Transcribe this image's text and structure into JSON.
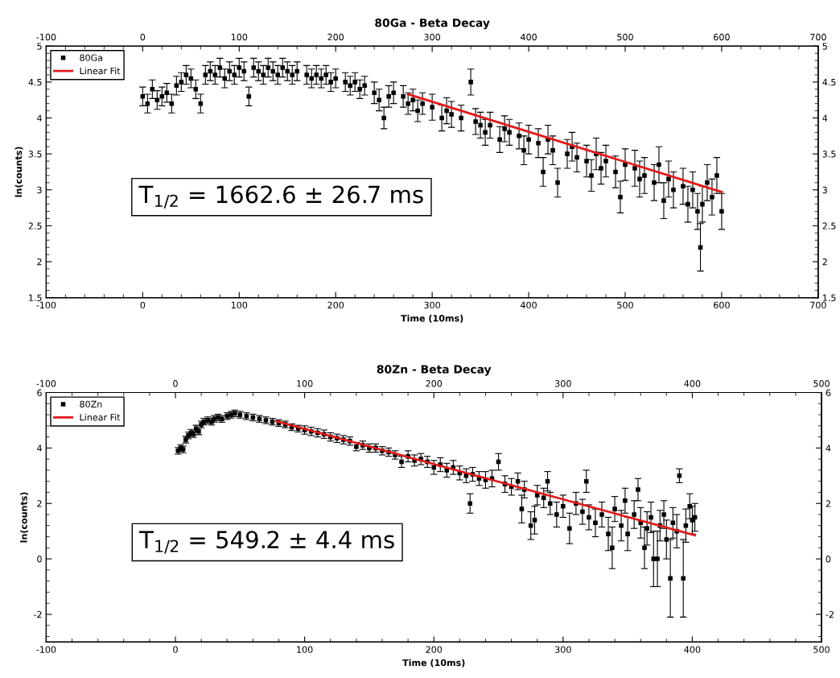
{
  "chart_data": [
    {
      "type": "scatter",
      "title": "80Ga - Beta Decay",
      "xlabel": "Time (10ms)",
      "ylabel": "ln(counts)",
      "xlim": [
        -100,
        700
      ],
      "xticks": [
        -100,
        0,
        100,
        200,
        300,
        400,
        500,
        600,
        700
      ],
      "x2lim": [
        -100,
        700
      ],
      "x2ticks": [
        -100,
        0,
        100,
        200,
        300,
        400,
        500,
        600,
        700
      ],
      "ylim": [
        1.5,
        5
      ],
      "yticks": [
        1.5,
        2,
        2.5,
        3,
        3.5,
        4,
        4.5,
        5
      ],
      "y2lim": [
        1.5,
        5
      ],
      "y2ticks": [
        1.5,
        2,
        2.5,
        3,
        3.5,
        4,
        4.5,
        5
      ],
      "legend": "top left",
      "grid": false,
      "annotations": [
        "T$_{1/2}$ = 1662.6 ± 26.7 ms"
      ],
      "series": [
        {
          "name": "80Ga",
          "color": "#000000",
          "marker": "square",
          "x": [
            0,
            5,
            10,
            15,
            20,
            25,
            30,
            35,
            40,
            45,
            50,
            55,
            60,
            65,
            70,
            75,
            80,
            85,
            90,
            95,
            100,
            105,
            110,
            115,
            120,
            125,
            130,
            135,
            140,
            145,
            150,
            155,
            160,
            170,
            175,
            180,
            185,
            190,
            195,
            200,
            210,
            215,
            220,
            225,
            230,
            240,
            245,
            250,
            255,
            260,
            270,
            275,
            280,
            285,
            290,
            300,
            310,
            315,
            320,
            330,
            340,
            345,
            350,
            355,
            360,
            370,
            375,
            380,
            390,
            395,
            400,
            410,
            415,
            420,
            425,
            430,
            440,
            445,
            450,
            460,
            465,
            470,
            475,
            480,
            490,
            495,
            500,
            510,
            515,
            520,
            530,
            535,
            540,
            545,
            550,
            560,
            565,
            570,
            575,
            578,
            580,
            585,
            590,
            595,
            600
          ],
          "values": [
            4.3,
            4.2,
            4.4,
            4.25,
            4.3,
            4.35,
            4.2,
            4.45,
            4.5,
            4.6,
            4.55,
            4.4,
            4.2,
            4.6,
            4.65,
            4.6,
            4.7,
            4.55,
            4.65,
            4.6,
            4.7,
            4.65,
            4.3,
            4.7,
            4.65,
            4.6,
            4.7,
            4.65,
            4.6,
            4.7,
            4.65,
            4.6,
            4.65,
            4.6,
            4.55,
            4.6,
            4.55,
            4.6,
            4.5,
            4.55,
            4.5,
            4.45,
            4.5,
            4.4,
            4.45,
            4.35,
            4.25,
            4.0,
            4.3,
            4.35,
            4.3,
            4.2,
            4.25,
            4.1,
            4.2,
            4.15,
            4.0,
            4.1,
            4.05,
            4.0,
            4.5,
            3.95,
            3.9,
            3.8,
            3.9,
            3.7,
            3.85,
            3.8,
            3.75,
            3.55,
            3.7,
            3.65,
            3.25,
            3.7,
            3.55,
            3.1,
            3.5,
            3.6,
            3.45,
            3.4,
            3.2,
            3.5,
            3.3,
            3.4,
            3.25,
            2.9,
            3.35,
            3.3,
            3.15,
            3.2,
            3.1,
            3.35,
            2.85,
            3.15,
            3.0,
            3.05,
            2.8,
            3.0,
            2.7,
            2.2,
            2.8,
            3.1,
            2.9,
            3.2,
            2.7
          ],
          "errors": [
            0.13,
            0.13,
            0.13,
            0.13,
            0.13,
            0.13,
            0.13,
            0.13,
            0.13,
            0.13,
            0.13,
            0.13,
            0.13,
            0.13,
            0.13,
            0.13,
            0.13,
            0.13,
            0.13,
            0.13,
            0.13,
            0.13,
            0.13,
            0.13,
            0.13,
            0.13,
            0.13,
            0.13,
            0.13,
            0.13,
            0.13,
            0.13,
            0.13,
            0.13,
            0.13,
            0.13,
            0.13,
            0.13,
            0.13,
            0.13,
            0.13,
            0.13,
            0.13,
            0.13,
            0.13,
            0.15,
            0.15,
            0.15,
            0.15,
            0.15,
            0.15,
            0.15,
            0.15,
            0.15,
            0.15,
            0.18,
            0.18,
            0.18,
            0.18,
            0.18,
            0.18,
            0.18,
            0.18,
            0.18,
            0.18,
            0.18,
            0.18,
            0.18,
            0.18,
            0.2,
            0.2,
            0.2,
            0.2,
            0.2,
            0.2,
            0.2,
            0.2,
            0.2,
            0.2,
            0.22,
            0.22,
            0.22,
            0.22,
            0.22,
            0.22,
            0.22,
            0.22,
            0.25,
            0.25,
            0.25,
            0.25,
            0.25,
            0.25,
            0.25,
            0.25,
            0.25,
            0.25,
            0.25,
            0.25,
            0.33,
            0.25,
            0.25,
            0.25,
            0.25,
            0.25
          ]
        },
        {
          "name": "Linear Fit",
          "type": "line",
          "marker": "none",
          "color": "#e31a1c",
          "x": [
            275,
            600
          ],
          "values": [
            4.33,
            2.97
          ]
        }
      ]
    },
    {
      "type": "scatter",
      "title": "80Zn - Beta Decay",
      "xlabel": "Time (10ms)",
      "ylabel": "ln(counts)",
      "xlim": [
        -100,
        500
      ],
      "xticks": [
        -100,
        0,
        100,
        200,
        300,
        400,
        500
      ],
      "x2lim": [
        -100,
        500
      ],
      "x2ticks": [
        -100,
        0,
        100,
        200,
        300,
        400,
        500
      ],
      "ylim": [
        -3,
        6
      ],
      "yticks": [
        -2,
        0,
        2,
        4,
        6
      ],
      "y2lim": [
        -3,
        6
      ],
      "y2ticks": [
        -2,
        0,
        2,
        4,
        6
      ],
      "legend": "top left",
      "grid": false,
      "annotations": [
        "T$_{1/2}$ = 549.2 ± 4.4 ms"
      ],
      "series": [
        {
          "name": "80Zn",
          "color": "#000000",
          "marker": "square",
          "x": [
            2,
            4,
            6,
            8,
            10,
            12,
            14,
            16,
            18,
            20,
            22,
            25,
            28,
            30,
            33,
            36,
            40,
            43,
            46,
            50,
            55,
            60,
            65,
            70,
            75,
            80,
            85,
            90,
            95,
            100,
            105,
            110,
            115,
            120,
            125,
            130,
            135,
            140,
            145,
            150,
            155,
            160,
            165,
            170,
            175,
            180,
            185,
            190,
            195,
            200,
            205,
            210,
            215,
            220,
            225,
            228,
            230,
            235,
            240,
            245,
            250,
            255,
            260,
            265,
            268,
            270,
            275,
            278,
            280,
            285,
            288,
            290,
            295,
            300,
            305,
            310,
            315,
            318,
            320,
            325,
            330,
            335,
            338,
            340,
            345,
            348,
            350,
            355,
            358,
            360,
            363,
            365,
            368,
            370,
            373,
            375,
            378,
            380,
            383,
            385,
            388,
            390,
            393,
            395,
            398,
            400,
            402
          ],
          "values": [
            3.9,
            4.0,
            3.95,
            4.3,
            4.45,
            4.55,
            4.5,
            4.7,
            4.6,
            4.85,
            4.95,
            5.0,
            4.95,
            5.05,
            5.1,
            5.05,
            5.15,
            5.2,
            5.25,
            5.2,
            5.15,
            5.1,
            5.05,
            5.0,
            4.95,
            4.9,
            4.85,
            4.75,
            4.7,
            4.65,
            4.6,
            4.55,
            4.5,
            4.4,
            4.35,
            4.3,
            4.25,
            4.05,
            4.1,
            4.0,
            4.0,
            3.9,
            3.85,
            3.75,
            3.5,
            3.7,
            3.55,
            3.6,
            3.5,
            3.3,
            3.4,
            3.2,
            3.3,
            3.1,
            3.0,
            2.0,
            3.05,
            2.9,
            2.85,
            2.9,
            3.5,
            2.7,
            2.6,
            2.8,
            1.8,
            2.5,
            1.2,
            1.4,
            2.3,
            2.2,
            2.8,
            2.0,
            1.6,
            1.9,
            1.1,
            2.0,
            1.7,
            2.8,
            1.5,
            1.3,
            1.6,
            0.9,
            0.4,
            1.8,
            1.2,
            2.1,
            0.9,
            1.6,
            2.5,
            1.3,
            0.4,
            1.1,
            1.5,
            0.0,
            0.0,
            1.2,
            1.6,
            0.7,
            -0.7,
            1.3,
            1.0,
            3.0,
            -0.7,
            1.2,
            1.9,
            1.4,
            1.5
          ],
          "errors": [
            0.12,
            0.12,
            0.12,
            0.12,
            0.12,
            0.12,
            0.12,
            0.12,
            0.12,
            0.12,
            0.12,
            0.12,
            0.12,
            0.12,
            0.12,
            0.12,
            0.12,
            0.12,
            0.12,
            0.12,
            0.12,
            0.12,
            0.12,
            0.12,
            0.12,
            0.12,
            0.12,
            0.12,
            0.12,
            0.15,
            0.15,
            0.15,
            0.15,
            0.15,
            0.15,
            0.15,
            0.15,
            0.15,
            0.15,
            0.15,
            0.15,
            0.15,
            0.15,
            0.15,
            0.2,
            0.2,
            0.2,
            0.2,
            0.2,
            0.25,
            0.25,
            0.25,
            0.25,
            0.25,
            0.25,
            0.35,
            0.25,
            0.25,
            0.3,
            0.3,
            0.3,
            0.3,
            0.3,
            0.3,
            0.5,
            0.3,
            0.5,
            0.5,
            0.35,
            0.35,
            0.35,
            0.4,
            0.45,
            0.4,
            0.55,
            0.4,
            0.45,
            0.4,
            0.45,
            0.5,
            0.45,
            0.6,
            0.75,
            0.45,
            0.55,
            0.45,
            0.6,
            0.5,
            0.4,
            0.55,
            0.75,
            0.6,
            0.55,
            1.0,
            1.0,
            0.55,
            0.5,
            0.7,
            1.4,
            0.55,
            0.6,
            0.25,
            1.4,
            0.6,
            0.45,
            0.5,
            0.5
          ]
        },
        {
          "name": "Linear Fit",
          "type": "line",
          "marker": "none",
          "color": "#e31a1c",
          "x": [
            78,
            402
          ],
          "values": [
            4.97,
            0.85
          ]
        }
      ]
    }
  ]
}
